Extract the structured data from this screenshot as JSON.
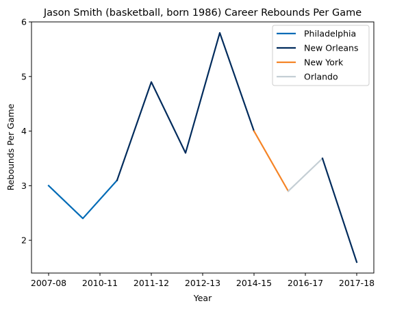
{
  "chart_data": {
    "type": "line",
    "title": "Jason Smith (basketball, born 1986) Career Rebounds Per Game",
    "xlabel": "Year",
    "ylabel": "Rebounds Per Game",
    "x_tick_labels": [
      "2007-08",
      "2010-11",
      "2011-12",
      "2012-13",
      "2014-15",
      "2016-17",
      "2017-18"
    ],
    "y_ticks": [
      2,
      3,
      4,
      5,
      6
    ],
    "ylim": [
      1.4,
      6.0
    ],
    "x": [
      0,
      1,
      2,
      3,
      4,
      5,
      6,
      7,
      8,
      9
    ],
    "values": [
      3.0,
      2.4,
      3.1,
      4.9,
      3.6,
      5.8,
      4.0,
      2.9,
      3.5,
      1.6
    ],
    "series": [
      {
        "name": "Philadelphia",
        "color": "#006BB6",
        "points": [
          0,
          1,
          2
        ]
      },
      {
        "name": "New Orleans",
        "color": "#002B5C",
        "points": [
          2,
          3,
          4,
          5,
          6
        ]
      },
      {
        "name": "New York",
        "color": "#F58426",
        "points": [
          6,
          7
        ]
      },
      {
        "name": "Orlando",
        "color": "#C4CED4",
        "points": [
          7,
          8
        ]
      },
      {
        "name": "",
        "color": "#002B5C",
        "points": [
          8,
          9
        ]
      }
    ],
    "legend_position": "top-right",
    "grid": false
  }
}
